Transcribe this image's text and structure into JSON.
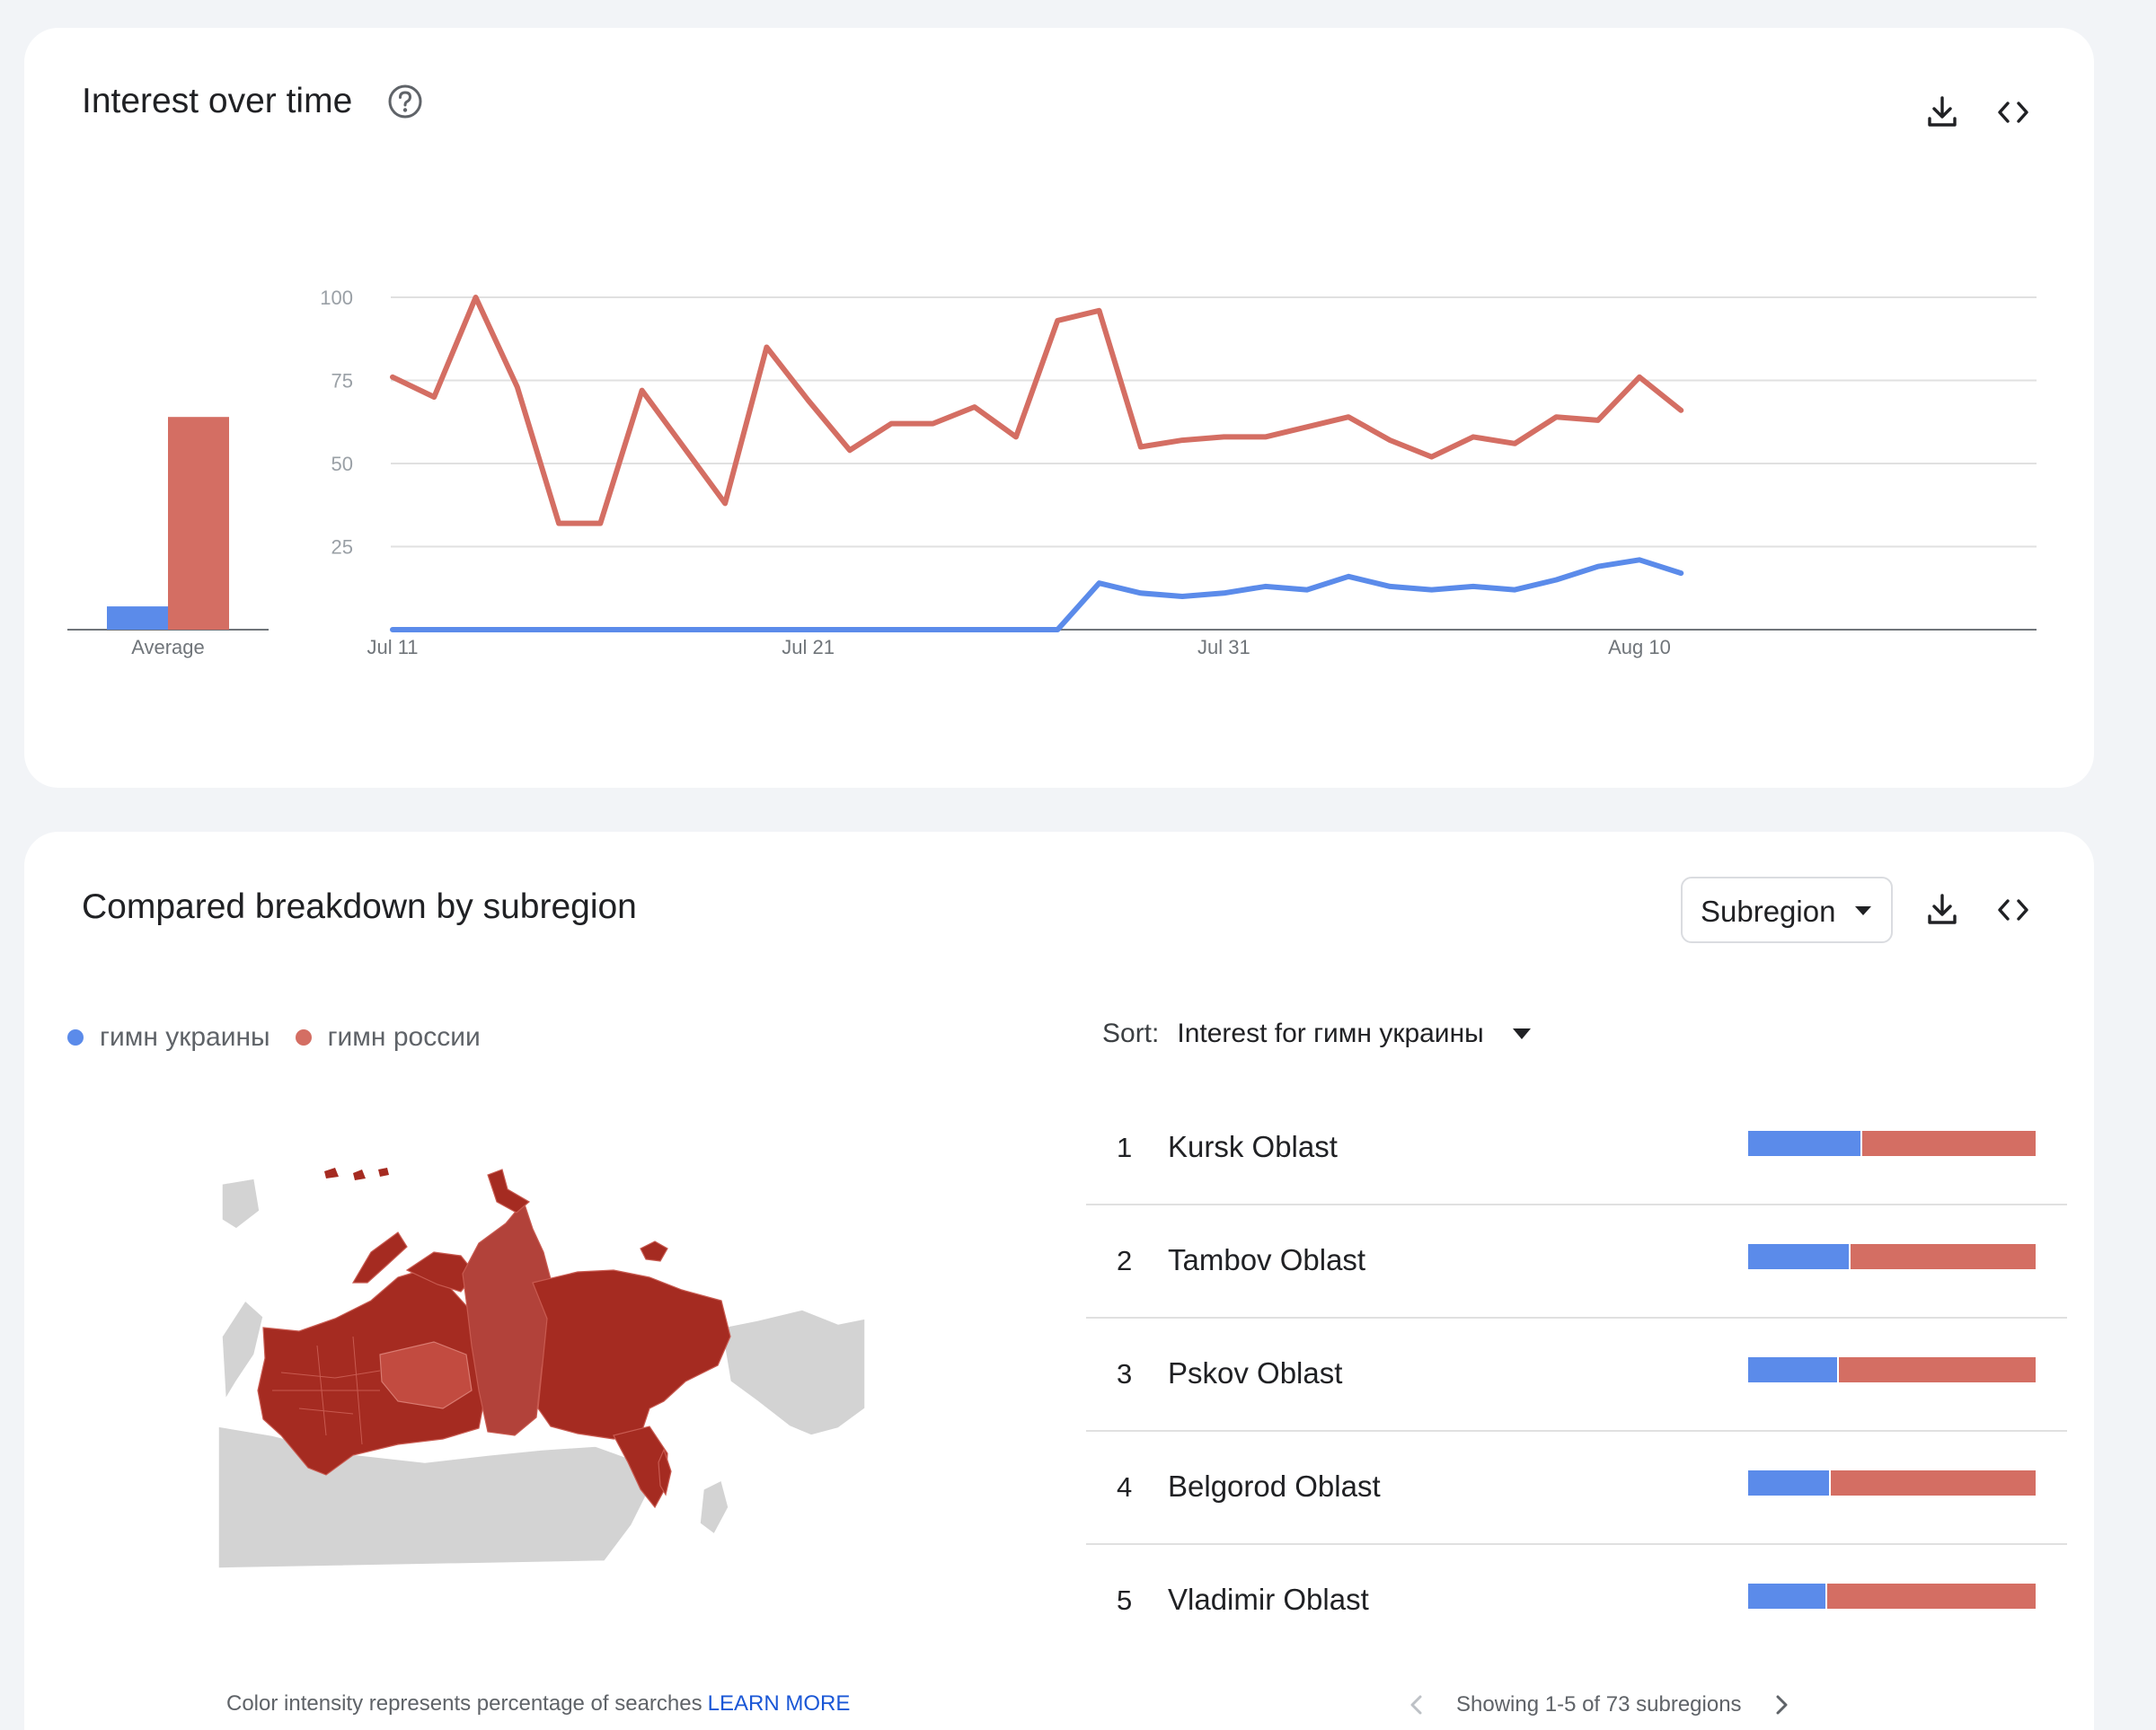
{
  "interest_over_time": {
    "title": "Interest over time",
    "avg_label": "Average",
    "averages": [
      7,
      64
    ],
    "icons": [
      "help-icon",
      "download-icon",
      "embed-code-icon"
    ]
  },
  "chart_data": {
    "type": "line",
    "title": "Interest over time",
    "x_tick_labels": [
      "Jul 11",
      "Jul 21",
      "Jul 31",
      "Aug 10"
    ],
    "x": [
      "Jul 11",
      "Jul 12",
      "Jul 13",
      "Jul 14",
      "Jul 15",
      "Jul 16",
      "Jul 17",
      "Jul 18",
      "Jul 19",
      "Jul 20",
      "Jul 21",
      "Jul 22",
      "Jul 23",
      "Jul 24",
      "Jul 25",
      "Jul 26",
      "Jul 27",
      "Jul 28",
      "Jul 29",
      "Jul 30",
      "Jul 31",
      "Aug 1",
      "Aug 2",
      "Aug 3",
      "Aug 4",
      "Aug 5",
      "Aug 6",
      "Aug 7",
      "Aug 8",
      "Aug 9",
      "Aug 10",
      "Aug 11"
    ],
    "y_ticks": [
      25,
      50,
      75,
      100
    ],
    "ylim": [
      0,
      100
    ],
    "grid": true,
    "series": [
      {
        "name": "гимн украины",
        "color": "#5b8bea",
        "values": [
          0,
          0,
          0,
          0,
          0,
          0,
          0,
          0,
          0,
          0,
          0,
          0,
          0,
          0,
          0,
          0,
          0,
          14,
          11,
          10,
          11,
          13,
          12,
          16,
          13,
          12,
          13,
          12,
          15,
          19,
          21,
          17
        ]
      },
      {
        "name": "гимн россии",
        "color": "#d46e63",
        "values": [
          76,
          70,
          100,
          73,
          32,
          32,
          72,
          55,
          38,
          85,
          69,
          54,
          62,
          62,
          67,
          58,
          93,
          96,
          55,
          57,
          58,
          58,
          61,
          64,
          57,
          52,
          58,
          56,
          64,
          63,
          76,
          66
        ]
      }
    ]
  },
  "breakdown": {
    "title": "Compared breakdown by subregion",
    "dropdown_label": "Subregion",
    "legend": [
      {
        "name": "гимн украины",
        "color": "#5b8bea"
      },
      {
        "name": "гимн россии",
        "color": "#d46e63"
      }
    ],
    "sort_label": "Sort:",
    "sort_value": "Interest for гимн украины",
    "rows": [
      {
        "rank": "1",
        "name": "Kursk Oblast",
        "blue_share": 0.39
      },
      {
        "rank": "2",
        "name": "Tambov Oblast",
        "blue_share": 0.35
      },
      {
        "rank": "3",
        "name": "Pskov Oblast",
        "blue_share": 0.31
      },
      {
        "rank": "4",
        "name": "Belgorod Oblast",
        "blue_share": 0.28
      },
      {
        "rank": "5",
        "name": "Vladimir Oblast",
        "blue_share": 0.27
      }
    ],
    "caption": "Color intensity represents percentage of searches",
    "learn_more": "LEARN MORE",
    "pager_text": "Showing 1-5 of 73 subregions"
  }
}
